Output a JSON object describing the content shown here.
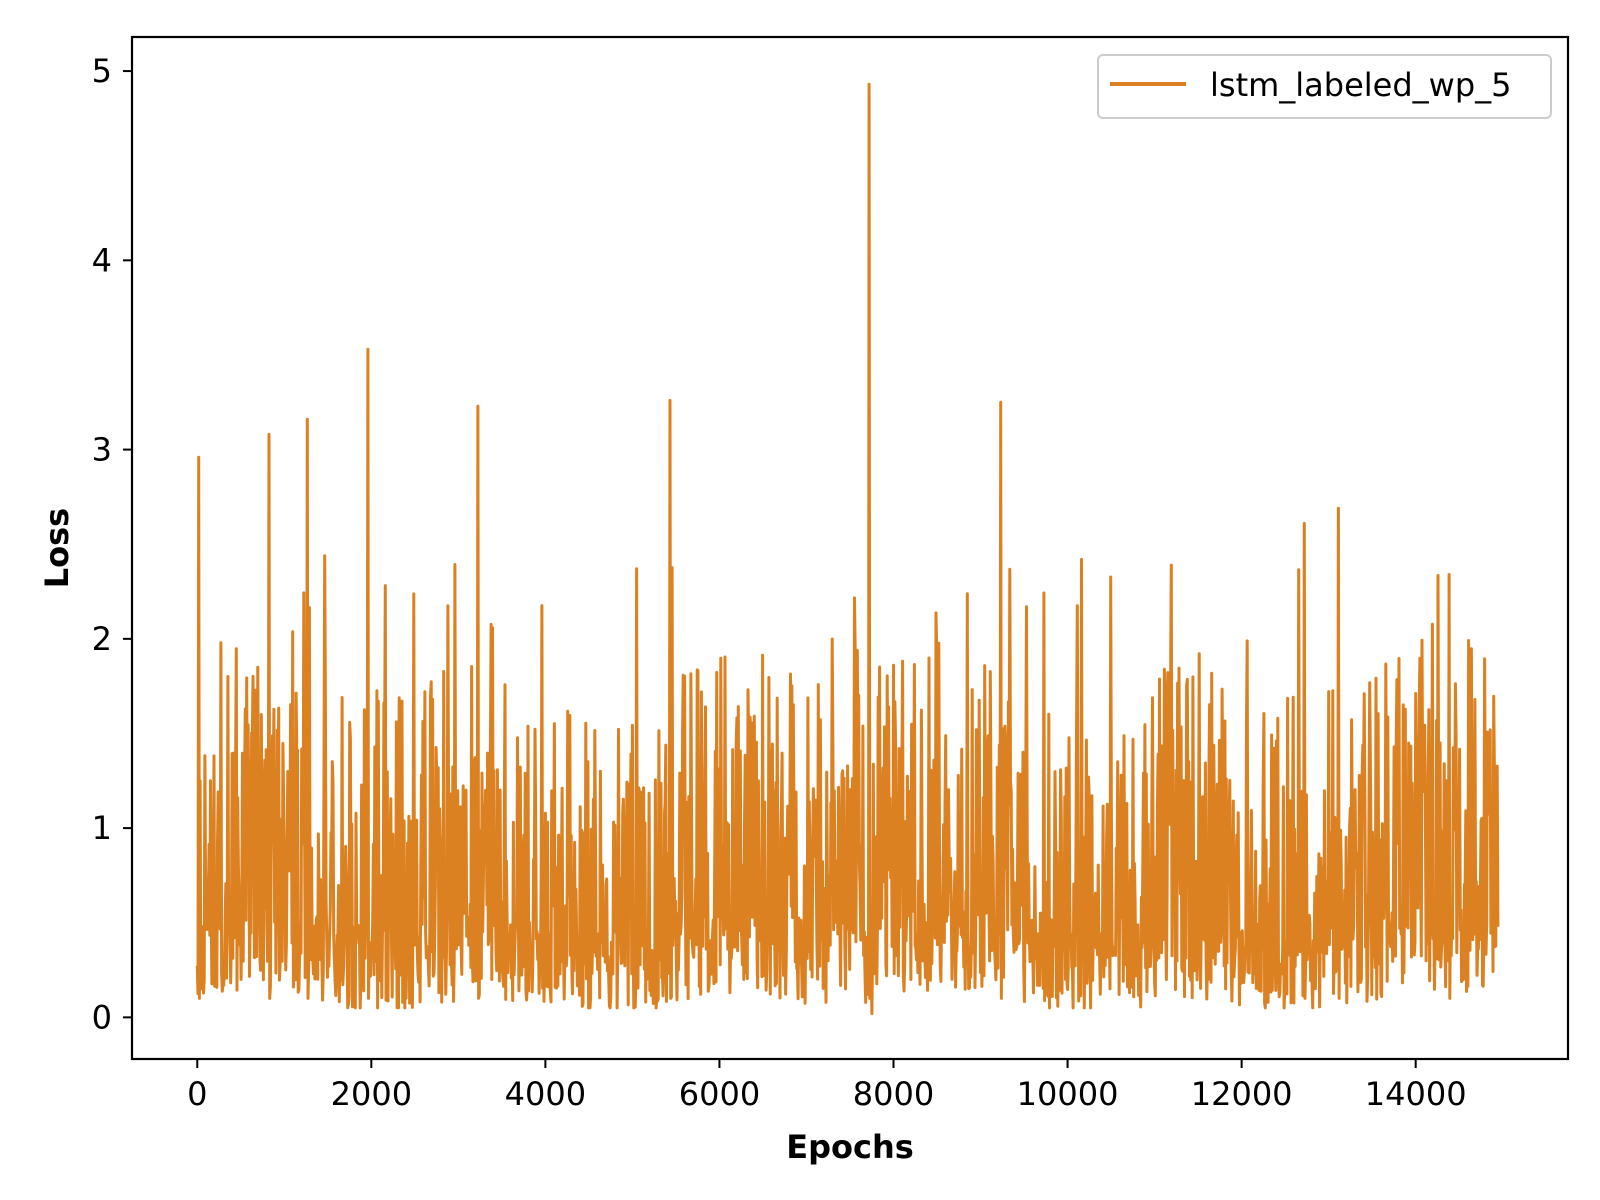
{
  "chart_data": {
    "type": "line",
    "title": "",
    "xlabel": "Epochs",
    "ylabel": "Loss",
    "xlim": [
      -750,
      15750
    ],
    "ylim": [
      -0.22,
      5.18
    ],
    "xticks": [
      0,
      2000,
      4000,
      6000,
      8000,
      10000,
      12000,
      14000
    ],
    "xtick_labels": [
      "0",
      "2000",
      "4000",
      "6000",
      "8000",
      "10000",
      "12000",
      "14000"
    ],
    "yticks": [
      0,
      1,
      2,
      3,
      4,
      5
    ],
    "ytick_labels": [
      "0",
      "1",
      "2",
      "3",
      "4",
      "5"
    ],
    "grid": false,
    "legend_position": "top-right",
    "series": [
      {
        "name": "lstm_labeled_wp_5",
        "color": "#dc8121",
        "x_start": 0,
        "x_end": 14950,
        "approx_typical_band": [
          0.15,
          1.6
        ],
        "min": 0.02,
        "max": 4.93,
        "peaks": [
          {
            "x": 15,
            "y": 2.96
          },
          {
            "x": 820,
            "y": 3.08
          },
          {
            "x": 1260,
            "y": 3.16
          },
          {
            "x": 1960,
            "y": 3.53
          },
          {
            "x": 3220,
            "y": 3.23
          },
          {
            "x": 5430,
            "y": 3.26
          },
          {
            "x": 7720,
            "y": 4.93
          },
          {
            "x": 9230,
            "y": 3.25
          },
          {
            "x": 12720,
            "y": 2.61
          },
          {
            "x": 13110,
            "y": 2.69
          },
          {
            "x": 14380,
            "y": 2.34
          }
        ]
      }
    ]
  }
}
